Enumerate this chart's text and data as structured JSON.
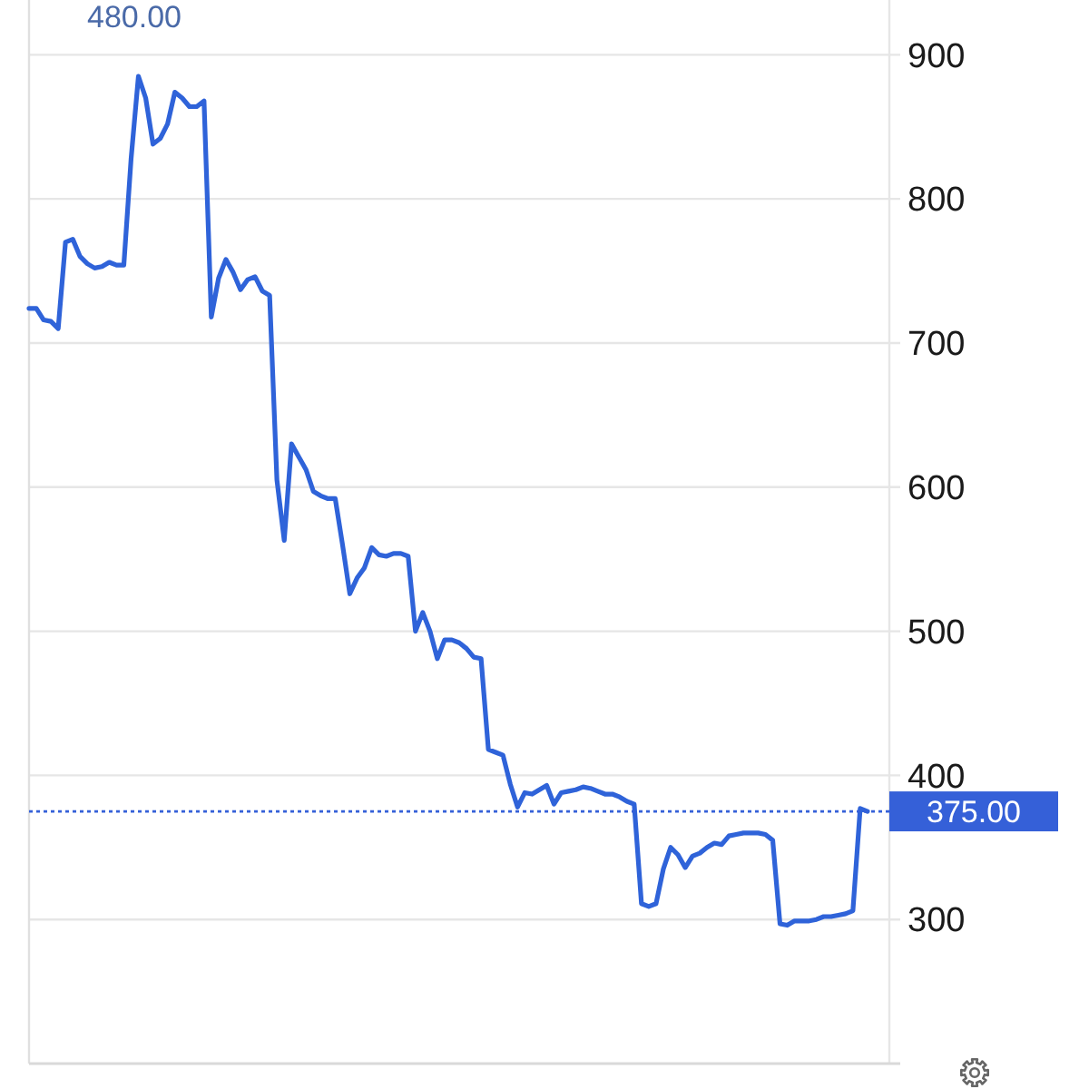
{
  "chart_data": {
    "type": "line",
    "annotations": [
      "480.00"
    ],
    "categories": [
      null,
      null,
      null,
      null,
      null,
      null,
      null,
      null,
      null,
      null,
      null,
      null,
      null,
      null,
      null,
      null,
      null,
      null,
      null,
      null,
      null,
      null,
      null,
      null,
      null,
      null,
      null,
      null,
      null,
      null,
      null,
      null,
      null,
      null,
      null,
      null,
      null,
      null,
      null,
      null,
      null,
      null,
      null,
      null,
      null,
      null,
      null,
      null,
      null,
      null,
      null,
      null,
      null,
      null,
      null,
      null,
      null,
      null,
      null,
      null,
      null,
      null,
      null,
      null,
      null,
      null,
      null,
      null,
      null,
      null,
      null,
      null,
      null,
      null,
      null,
      null,
      null,
      null,
      null,
      null,
      null,
      null,
      null,
      null,
      null,
      null,
      null,
      null,
      null,
      null,
      null,
      null,
      null,
      null,
      null,
      null,
      null,
      null,
      null,
      null,
      null,
      null,
      null,
      null,
      null,
      null,
      null,
      null,
      null,
      null,
      null,
      null,
      null,
      null,
      null,
      null,
      null,
      null,
      null
    ],
    "series": [
      {
        "color": "#2f63d9",
        "values": [
          724,
          724,
          716,
          715,
          710,
          770,
          772,
          760,
          755,
          752,
          753,
          756,
          754,
          754,
          828,
          885,
          870,
          838,
          842,
          852,
          874,
          870,
          864,
          864,
          868,
          718,
          745,
          758,
          749,
          737,
          744,
          746,
          736,
          733,
          605,
          563,
          630,
          621,
          612,
          597,
          594,
          592,
          592,
          560,
          526,
          537,
          544,
          558,
          553,
          552,
          554,
          554,
          552,
          500,
          513,
          500,
          481,
          494,
          494,
          492,
          488,
          482,
          481,
          418,
          416,
          414,
          394,
          378,
          388,
          387,
          390,
          393,
          380,
          388,
          389,
          390,
          392,
          391,
          389,
          387,
          387,
          385,
          382,
          380,
          311,
          309,
          311,
          335,
          350,
          345,
          336,
          344,
          346,
          350,
          353,
          352,
          358,
          359,
          360,
          360,
          360,
          359,
          355,
          297,
          296,
          299,
          299,
          299,
          300,
          302,
          302,
          303,
          304,
          306,
          377,
          375,
          null,
          null,
          null
        ]
      }
    ],
    "ylim": [
      200,
      938
    ],
    "yticks": [
      300,
      400,
      500,
      600,
      700,
      800,
      900
    ],
    "grid": "y",
    "tick_labels": "y",
    "ref_lines": [
      {
        "axis": "y",
        "value": 375,
        "label": "375.00",
        "color": "#3560d8",
        "line_style": "dotted"
      }
    ]
  }
}
